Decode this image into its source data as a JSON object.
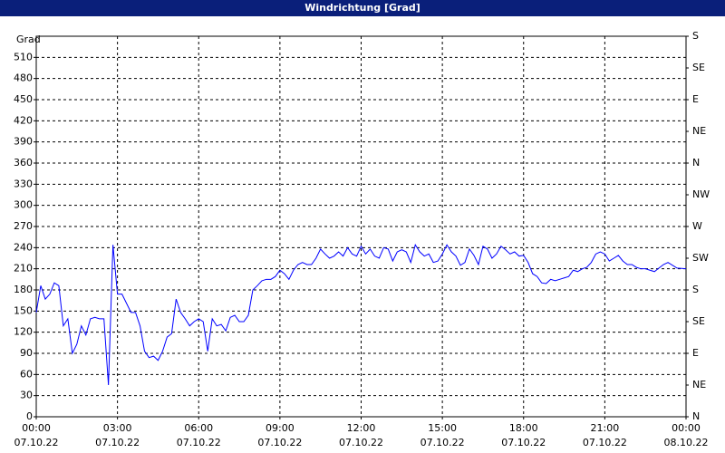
{
  "chart_data": {
    "type": "line",
    "title": "Windrichtung [Grad]",
    "y_label": "Grad",
    "x": [
      0,
      10,
      20,
      30,
      40,
      50,
      60,
      70,
      80,
      90,
      100,
      110,
      120,
      130,
      140,
      150,
      160,
      170,
      180,
      190,
      200,
      210,
      220,
      230,
      240,
      250,
      260,
      270,
      280,
      290,
      300,
      310,
      320,
      330,
      340,
      350,
      360,
      370,
      380,
      390,
      400,
      410,
      420,
      430,
      440,
      450,
      460,
      470,
      480,
      490,
      500,
      510,
      520,
      530,
      540,
      550,
      560,
      570,
      580,
      590,
      600,
      610,
      620,
      630,
      640,
      650,
      660,
      670,
      680,
      690,
      700,
      710,
      720,
      730,
      740,
      750,
      760,
      770,
      780,
      790,
      800,
      810,
      820,
      830,
      840,
      850,
      860,
      870,
      880,
      890,
      900,
      910,
      920,
      930,
      940,
      950,
      960,
      970,
      980,
      990,
      1000,
      1010,
      1020,
      1030,
      1040,
      1050,
      1060,
      1070,
      1080,
      1090,
      1100,
      1110,
      1120,
      1130,
      1140,
      1150,
      1160,
      1170,
      1180,
      1190,
      1200,
      1210,
      1220,
      1230,
      1240,
      1250,
      1260,
      1270,
      1280,
      1290,
      1300,
      1310,
      1320,
      1330,
      1340,
      1350,
      1360,
      1370,
      1380,
      1390,
      1400,
      1410,
      1420,
      1440
    ],
    "series": [
      {
        "name": "Windrichtung",
        "color": "#0000ff",
        "values": [
          148,
          186,
          167,
          174,
          190,
          186,
          129,
          139,
          90,
          103,
          129,
          116,
          139,
          141,
          139,
          139,
          45,
          244,
          174,
          174,
          161,
          148,
          148,
          129,
          93,
          84,
          86,
          80,
          93,
          113,
          118,
          167,
          148,
          139,
          129,
          135,
          139,
          135,
          93,
          139,
          129,
          131,
          122,
          141,
          144,
          135,
          135,
          144,
          180,
          186,
          193,
          195,
          195,
          199,
          208,
          203,
          195,
          208,
          216,
          219,
          216,
          216,
          225,
          238,
          231,
          225,
          228,
          234,
          228,
          240,
          231,
          228,
          242,
          231,
          238,
          228,
          225,
          240,
          238,
          221,
          234,
          237,
          234,
          219,
          244,
          234,
          228,
          231,
          219,
          221,
          231,
          244,
          234,
          228,
          215,
          219,
          238,
          229,
          216,
          242,
          238,
          225,
          231,
          242,
          237,
          231,
          234,
          228,
          229,
          219,
          203,
          199,
          190,
          189,
          195,
          193,
          195,
          197,
          199,
          208,
          206,
          210,
          212,
          219,
          231,
          234,
          231,
          221,
          225,
          229,
          221,
          216,
          216,
          212,
          210,
          210,
          208,
          206,
          211,
          216,
          219,
          215,
          211,
          210
        ]
      }
    ],
    "xlim": [
      0,
      1440
    ],
    "xticks": [
      {
        "value": 0,
        "label": "00:00"
      },
      {
        "value": 180,
        "label": "03:00"
      },
      {
        "value": 360,
        "label": "06:00"
      },
      {
        "value": 540,
        "label": "09:00"
      },
      {
        "value": 720,
        "label": "12:00"
      },
      {
        "value": 900,
        "label": "15:00"
      },
      {
        "value": 1080,
        "label": "18:00"
      },
      {
        "value": 1260,
        "label": "21:00"
      },
      {
        "value": 1440,
        "label": "00:00"
      }
    ],
    "xtick_dates": [
      "07.10.22",
      "07.10.22",
      "07.10.22",
      "07.10.22",
      "07.10.22",
      "07.10.22",
      "07.10.22",
      "07.10.22",
      "08.10.22"
    ],
    "ylim": [
      0,
      540
    ],
    "yticks": [
      0,
      30,
      60,
      90,
      120,
      150,
      180,
      210,
      240,
      270,
      300,
      330,
      360,
      390,
      420,
      450,
      480,
      510
    ],
    "y2lim": [
      0,
      540
    ],
    "y2ticks": [
      {
        "value": 0,
        "label": "N"
      },
      {
        "value": 45,
        "label": "NE"
      },
      {
        "value": 90,
        "label": "E"
      },
      {
        "value": 135,
        "label": "SE"
      },
      {
        "value": 180,
        "label": "S"
      },
      {
        "value": 225,
        "label": "SW"
      },
      {
        "value": 270,
        "label": "W"
      },
      {
        "value": 315,
        "label": "NW"
      },
      {
        "value": 360,
        "label": "N"
      },
      {
        "value": 405,
        "label": "NE"
      },
      {
        "value": 450,
        "label": "E"
      },
      {
        "value": 495,
        "label": "SE"
      },
      {
        "value": 540,
        "label": "S"
      }
    ],
    "grid": true
  }
}
